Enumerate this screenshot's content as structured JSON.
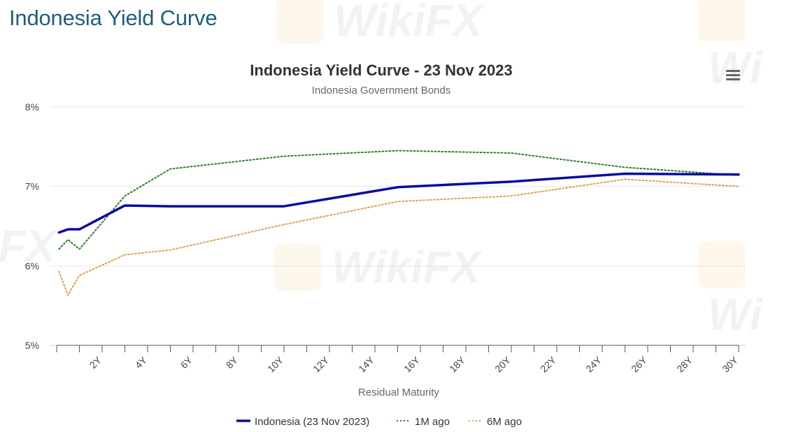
{
  "page": {
    "heading": "Indonesia Yield Curve"
  },
  "menu_icon": "hamburger-menu-icon",
  "chart_data": {
    "type": "line",
    "title": "Indonesia Yield Curve - 23 Nov 2023",
    "subtitle": "Indonesia Government Bonds",
    "xlabel": "Residual Maturity",
    "ylabel": "",
    "xlim": [
      0,
      30
    ],
    "ylim": [
      5,
      8
    ],
    "x_ticks": [
      "2Y",
      "4Y",
      "6Y",
      "8Y",
      "10Y",
      "12Y",
      "14Y",
      "16Y",
      "18Y",
      "20Y",
      "22Y",
      "24Y",
      "26Y",
      "28Y",
      "30Y"
    ],
    "y_ticks": [
      "5%",
      "6%",
      "7%",
      "8%"
    ],
    "grid": true,
    "legend_position": "bottom-center",
    "series": [
      {
        "name": "Indonesia (23 Nov 2023)",
        "color": "#0b0b9e",
        "style": "solid",
        "points": [
          [
            0.1,
            6.42
          ],
          [
            0.5,
            6.46
          ],
          [
            1,
            6.46
          ],
          [
            3,
            6.76
          ],
          [
            5,
            6.75
          ],
          [
            10,
            6.75
          ],
          [
            15,
            6.99
          ],
          [
            20,
            7.06
          ],
          [
            25,
            7.16
          ],
          [
            30,
            7.15
          ]
        ]
      },
      {
        "name": "1M ago",
        "color": "#2e7d2e",
        "style": "dotted",
        "points": [
          [
            0.1,
            6.21
          ],
          [
            0.5,
            6.33
          ],
          [
            1,
            6.21
          ],
          [
            3,
            6.88
          ],
          [
            5,
            7.22
          ],
          [
            10,
            7.38
          ],
          [
            15,
            7.45
          ],
          [
            20,
            7.42
          ],
          [
            25,
            7.24
          ],
          [
            30,
            7.14
          ]
        ]
      },
      {
        "name": "6M ago",
        "color": "#e0a050",
        "style": "dotted",
        "points": [
          [
            0.1,
            5.93
          ],
          [
            0.5,
            5.63
          ],
          [
            1,
            5.88
          ],
          [
            3,
            6.14
          ],
          [
            5,
            6.2
          ],
          [
            10,
            6.52
          ],
          [
            15,
            6.81
          ],
          [
            20,
            6.88
          ],
          [
            25,
            7.09
          ],
          [
            30,
            7.0
          ]
        ]
      }
    ]
  }
}
